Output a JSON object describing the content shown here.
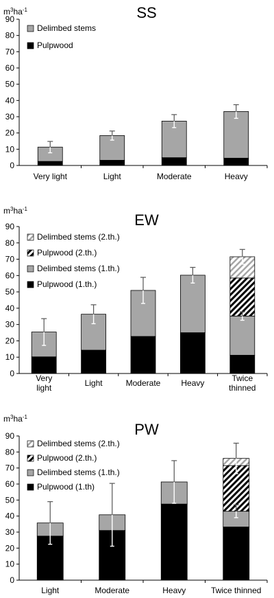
{
  "chart_data": [
    {
      "type": "bar",
      "stacked": true,
      "title": "SS",
      "ylabel": "m3ha-1",
      "ylim": [
        0,
        90
      ],
      "yticks": [
        0,
        10,
        20,
        30,
        40,
        50,
        60,
        70,
        80,
        90
      ],
      "grid": false,
      "legend_position": "top-left",
      "categories": [
        "Very light",
        "Light",
        "Moderate",
        "Heavy"
      ],
      "series": [
        {
          "name": "Pulpwood",
          "color": "#000000",
          "fill": "solid",
          "values": [
            2.5,
            3.2,
            4.8,
            4.5
          ]
        },
        {
          "name": "Delimbed stems",
          "color": "#a6a6a6",
          "fill": "solid",
          "values": [
            8.8,
            15.2,
            22.5,
            28.7
          ]
        }
      ],
      "legend": [
        {
          "name": "Delimbed stems",
          "color": "#a6a6a6",
          "fill": "solid"
        },
        {
          "name": "Pulpwood",
          "color": "#000000",
          "fill": "solid"
        }
      ],
      "error_bars": [
        {
          "center": 11.3,
          "low": 7.8,
          "high": 14.8
        },
        {
          "center": 18.4,
          "low": 15.6,
          "high": 21.2
        },
        {
          "center": 27.3,
          "low": 23.3,
          "high": 31.3
        },
        {
          "center": 33.2,
          "low": 29.0,
          "high": 37.4
        }
      ]
    },
    {
      "type": "bar",
      "stacked": true,
      "title": "EW",
      "ylabel": "m3ha-1",
      "ylim": [
        0,
        90
      ],
      "yticks": [
        0,
        10,
        20,
        30,
        40,
        50,
        60,
        70,
        80,
        90
      ],
      "grid": false,
      "legend_position": "top-left",
      "categories": [
        "Very light",
        "Light",
        "Moderate",
        "Heavy",
        "Twice thinned"
      ],
      "series": [
        {
          "name": "Pulpwood (1.th.)",
          "color": "#000000",
          "fill": "solid",
          "values": [
            10.2,
            14.3,
            22.7,
            25.0,
            11.2
          ]
        },
        {
          "name": "Delimbed stems (1.th.)",
          "color": "#a6a6a6",
          "fill": "solid",
          "values": [
            15.2,
            22.0,
            28.2,
            35.2,
            24.0
          ]
        },
        {
          "name": "Pulpwood (2.th.)",
          "color": "#000000",
          "fill": "hatch",
          "values": [
            0,
            0,
            0,
            0,
            23.3
          ]
        },
        {
          "name": "Delimbed stems (2.th.)",
          "color": "#a6a6a6",
          "fill": "hatch",
          "values": [
            0,
            0,
            0,
            0,
            13.0
          ]
        }
      ],
      "legend": [
        {
          "name": "Delimbed stems (2.th.)",
          "color": "#a6a6a6",
          "fill": "hatch"
        },
        {
          "name": "Pulpwood (2.th.)",
          "color": "#000000",
          "fill": "hatch"
        },
        {
          "name": "Delimbed stems (1.th.)",
          "color": "#a6a6a6",
          "fill": "solid"
        },
        {
          "name": "Pulpwood (1.th.)",
          "color": "#000000",
          "fill": "solid"
        }
      ],
      "error_bars": [
        {
          "center": 25.4,
          "low": 17.2,
          "high": 33.6
        },
        {
          "center": 36.3,
          "low": 30.5,
          "high": 42.1
        },
        {
          "center": 50.9,
          "low": 42.9,
          "high": 58.9
        },
        {
          "center": 60.2,
          "low": 55.4,
          "high": 65.0
        },
        {
          "center": 71.5,
          "low": 67.0,
          "high": 76.0
        },
        {
          "center": 35.2,
          "low": 32.6,
          "high": 37.8
        }
      ]
    },
    {
      "type": "bar",
      "stacked": true,
      "title": "PW",
      "ylabel": "m3ha-1",
      "ylim": [
        0,
        90
      ],
      "yticks": [
        0,
        10,
        20,
        30,
        40,
        50,
        60,
        70,
        80,
        90
      ],
      "grid": false,
      "legend_position": "top-left",
      "categories": [
        "Light",
        "Moderate",
        "Heavy",
        "Twice thinned"
      ],
      "series": [
        {
          "name": "Pulpwood (1.th)",
          "color": "#000000",
          "fill": "solid",
          "values": [
            27.5,
            31.0,
            47.5,
            33.2
          ]
        },
        {
          "name": "Delimbed stems (1.th.)",
          "color": "#a6a6a6",
          "fill": "solid",
          "values": [
            8.2,
            9.8,
            13.8,
            9.8
          ]
        },
        {
          "name": "Pulpwood (2.th.)",
          "color": "#000000",
          "fill": "hatch",
          "values": [
            0,
            0,
            0,
            28.5
          ]
        },
        {
          "name": "Delimbed stems (2.th.)",
          "color": "#a6a6a6",
          "fill": "hatch",
          "values": [
            0,
            0,
            0,
            4.5
          ]
        }
      ],
      "legend": [
        {
          "name": "Delimbed stems (2.th.)",
          "color": "#a6a6a6",
          "fill": "hatch"
        },
        {
          "name": "Pulpwood (2.th.)",
          "color": "#000000",
          "fill": "hatch"
        },
        {
          "name": "Delimbed stems (1.th.)",
          "color": "#a6a6a6",
          "fill": "solid"
        },
        {
          "name": "Pulpwood (1.th)",
          "color": "#000000",
          "fill": "solid"
        }
      ],
      "error_bars": [
        {
          "center": 35.7,
          "low": 22.4,
          "high": 49.0
        },
        {
          "center": 40.8,
          "low": 21.2,
          "high": 60.4
        },
        {
          "center": 61.3,
          "low": 48.0,
          "high": 74.6
        },
        {
          "center": 76.0,
          "low": 66.5,
          "high": 85.5
        },
        {
          "center": 43.0,
          "low": 39.0,
          "high": 47.0
        }
      ]
    }
  ]
}
